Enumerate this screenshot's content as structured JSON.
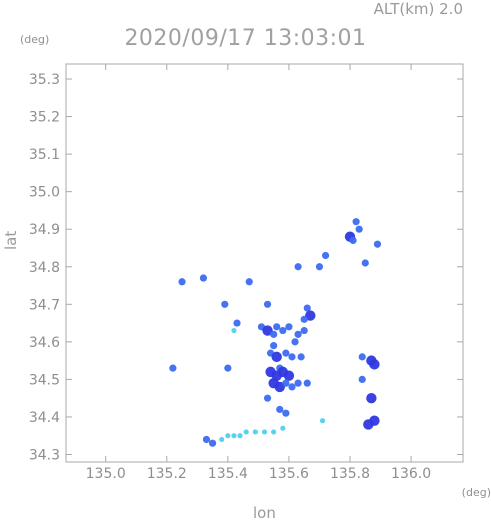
{
  "header": {
    "alt_label": "ALT(km) 2.0",
    "title": "2020/09/17 13:03:01",
    "y_unit": "(deg)",
    "x_unit": "(deg)"
  },
  "chart_data": {
    "type": "heatmap",
    "title": "2020/09/17 13:03:01",
    "xlabel": "lon",
    "ylabel": "lat",
    "xlim": [
      134.87,
      136.17
    ],
    "ylim": [
      34.28,
      35.34
    ],
    "x_ticks": [
      135.0,
      135.2,
      135.4,
      135.6,
      135.8,
      136.0
    ],
    "x_tick_labels": [
      "135.0",
      "135.2",
      "135.4",
      "135.6",
      "135.8",
      "136.0"
    ],
    "y_ticks": [
      34.3,
      34.4,
      34.5,
      34.6,
      34.7,
      34.8,
      34.9,
      35.0,
      35.1,
      35.2,
      35.3
    ],
    "y_tick_labels": [
      "34.3",
      "34.4",
      "34.5",
      "34.6",
      "34.7",
      "34.8",
      "34.9",
      "35.0",
      "35.1",
      "35.2",
      "35.3"
    ],
    "grid": false,
    "colors": {
      "weak": "#4fd0f0",
      "moderate": "#3c6cf0",
      "strong": "#3038e0"
    },
    "echoes": [
      {
        "lon": 135.82,
        "lat": 34.92,
        "level": "moderate"
      },
      {
        "lon": 135.83,
        "lat": 34.9,
        "level": "moderate"
      },
      {
        "lon": 135.8,
        "lat": 34.88,
        "level": "strong"
      },
      {
        "lon": 135.81,
        "lat": 34.87,
        "level": "moderate"
      },
      {
        "lon": 135.89,
        "lat": 34.86,
        "level": "moderate"
      },
      {
        "lon": 135.72,
        "lat": 34.83,
        "level": "moderate"
      },
      {
        "lon": 135.85,
        "lat": 34.81,
        "level": "moderate"
      },
      {
        "lon": 135.7,
        "lat": 34.8,
        "level": "moderate"
      },
      {
        "lon": 135.63,
        "lat": 34.8,
        "level": "moderate"
      },
      {
        "lon": 135.32,
        "lat": 34.77,
        "level": "moderate"
      },
      {
        "lon": 135.25,
        "lat": 34.76,
        "level": "moderate"
      },
      {
        "lon": 135.47,
        "lat": 34.76,
        "level": "moderate"
      },
      {
        "lon": 135.39,
        "lat": 34.7,
        "level": "moderate"
      },
      {
        "lon": 135.53,
        "lat": 34.7,
        "level": "moderate"
      },
      {
        "lon": 135.66,
        "lat": 34.69,
        "level": "moderate"
      },
      {
        "lon": 135.67,
        "lat": 34.67,
        "level": "strong"
      },
      {
        "lon": 135.65,
        "lat": 34.66,
        "level": "moderate"
      },
      {
        "lon": 135.43,
        "lat": 34.65,
        "level": "moderate"
      },
      {
        "lon": 135.42,
        "lat": 34.63,
        "level": "weak"
      },
      {
        "lon": 135.51,
        "lat": 34.64,
        "level": "moderate"
      },
      {
        "lon": 135.53,
        "lat": 34.63,
        "level": "strong"
      },
      {
        "lon": 135.55,
        "lat": 34.62,
        "level": "moderate"
      },
      {
        "lon": 135.56,
        "lat": 34.64,
        "level": "moderate"
      },
      {
        "lon": 135.58,
        "lat": 34.63,
        "level": "moderate"
      },
      {
        "lon": 135.6,
        "lat": 34.64,
        "level": "moderate"
      },
      {
        "lon": 135.63,
        "lat": 34.62,
        "level": "moderate"
      },
      {
        "lon": 135.65,
        "lat": 34.63,
        "level": "moderate"
      },
      {
        "lon": 135.62,
        "lat": 34.6,
        "level": "moderate"
      },
      {
        "lon": 135.55,
        "lat": 34.59,
        "level": "moderate"
      },
      {
        "lon": 135.54,
        "lat": 34.57,
        "level": "moderate"
      },
      {
        "lon": 135.56,
        "lat": 34.56,
        "level": "strong"
      },
      {
        "lon": 135.59,
        "lat": 34.57,
        "level": "moderate"
      },
      {
        "lon": 135.61,
        "lat": 34.56,
        "level": "moderate"
      },
      {
        "lon": 135.64,
        "lat": 34.56,
        "level": "moderate"
      },
      {
        "lon": 135.57,
        "lat": 34.53,
        "level": "moderate"
      },
      {
        "lon": 135.54,
        "lat": 34.52,
        "level": "strong"
      },
      {
        "lon": 135.56,
        "lat": 34.51,
        "level": "strong"
      },
      {
        "lon": 135.58,
        "lat": 34.52,
        "level": "strong"
      },
      {
        "lon": 135.6,
        "lat": 34.51,
        "level": "strong"
      },
      {
        "lon": 135.55,
        "lat": 34.49,
        "level": "strong"
      },
      {
        "lon": 135.57,
        "lat": 34.48,
        "level": "strong"
      },
      {
        "lon": 135.59,
        "lat": 34.49,
        "level": "moderate"
      },
      {
        "lon": 135.61,
        "lat": 34.48,
        "level": "moderate"
      },
      {
        "lon": 135.63,
        "lat": 34.49,
        "level": "moderate"
      },
      {
        "lon": 135.66,
        "lat": 34.49,
        "level": "moderate"
      },
      {
        "lon": 135.53,
        "lat": 34.45,
        "level": "moderate"
      },
      {
        "lon": 135.57,
        "lat": 34.42,
        "level": "moderate"
      },
      {
        "lon": 135.59,
        "lat": 34.41,
        "level": "moderate"
      },
      {
        "lon": 135.22,
        "lat": 34.53,
        "level": "moderate"
      },
      {
        "lon": 135.4,
        "lat": 34.53,
        "level": "moderate"
      },
      {
        "lon": 135.84,
        "lat": 34.56,
        "level": "moderate"
      },
      {
        "lon": 135.87,
        "lat": 34.55,
        "level": "strong"
      },
      {
        "lon": 135.88,
        "lat": 34.54,
        "level": "strong"
      },
      {
        "lon": 135.84,
        "lat": 34.5,
        "level": "moderate"
      },
      {
        "lon": 135.87,
        "lat": 34.45,
        "level": "strong"
      },
      {
        "lon": 135.88,
        "lat": 34.39,
        "level": "strong"
      },
      {
        "lon": 135.86,
        "lat": 34.38,
        "level": "strong"
      },
      {
        "lon": 135.71,
        "lat": 34.39,
        "level": "weak"
      },
      {
        "lon": 135.33,
        "lat": 34.34,
        "level": "moderate"
      },
      {
        "lon": 135.35,
        "lat": 34.33,
        "level": "moderate"
      },
      {
        "lon": 135.38,
        "lat": 34.34,
        "level": "weak"
      },
      {
        "lon": 135.4,
        "lat": 34.35,
        "level": "weak"
      },
      {
        "lon": 135.42,
        "lat": 34.35,
        "level": "weak"
      },
      {
        "lon": 135.44,
        "lat": 34.35,
        "level": "weak"
      },
      {
        "lon": 135.46,
        "lat": 34.36,
        "level": "weak"
      },
      {
        "lon": 135.49,
        "lat": 34.36,
        "level": "weak"
      },
      {
        "lon": 135.52,
        "lat": 34.36,
        "level": "weak"
      },
      {
        "lon": 135.55,
        "lat": 34.36,
        "level": "weak"
      },
      {
        "lon": 135.58,
        "lat": 34.37,
        "level": "weak"
      }
    ]
  }
}
